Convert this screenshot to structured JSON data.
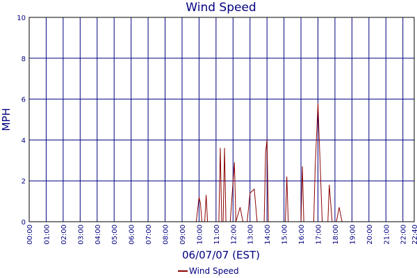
{
  "chart_data": {
    "type": "line",
    "title": "Wind Speed",
    "xlabel": "06/07/07 (EST)",
    "ylabel": "MPH",
    "ylim": [
      0,
      10
    ],
    "yticks": [
      "0",
      "2",
      "4",
      "6",
      "8",
      "10"
    ],
    "xticks": [
      "00:00",
      "01:00",
      "02:00",
      "03:00",
      "04:00",
      "05:00",
      "06:00",
      "07:00",
      "08:00",
      "09:00",
      "10:00",
      "11:00",
      "12:00",
      "13:00",
      "14:00",
      "15:00",
      "16:00",
      "17:00",
      "18:00",
      "19:00",
      "20:00",
      "21:00",
      "22:00",
      "22:40"
    ],
    "grid": true,
    "legend_position": "bottom-center",
    "series": [
      {
        "name": "Wind Speed",
        "color": "#8b0000",
        "x": [
          "00:00",
          "09:50",
          "10:00",
          "10:05",
          "10:10",
          "10:20",
          "10:25",
          "10:30",
          "11:00",
          "11:10",
          "11:15",
          "11:20",
          "11:25",
          "11:30",
          "11:35",
          "11:40",
          "11:50",
          "12:05",
          "12:10",
          "12:25",
          "12:35",
          "12:45",
          "12:50",
          "13:00",
          "13:15",
          "13:25",
          "13:35",
          "13:50",
          "13:55",
          "14:00",
          "14:05",
          "14:20",
          "15:05",
          "15:10",
          "15:15",
          "15:20",
          "15:45",
          "16:00",
          "16:05",
          "16:10",
          "16:20",
          "16:30",
          "16:45",
          "16:50",
          "17:00",
          "17:15",
          "17:25",
          "17:35",
          "17:40",
          "17:50",
          "18:05",
          "18:15",
          "18:25",
          "18:35",
          "22:40"
        ],
        "y": [
          0,
          0,
          1.2,
          0.9,
          0,
          0,
          1.3,
          0,
          0,
          0,
          3.6,
          0,
          0,
          3.6,
          0,
          0,
          0,
          2.9,
          0,
          0.7,
          0,
          0,
          0,
          1.4,
          1.6,
          0,
          0,
          0,
          3.4,
          4.0,
          0,
          0,
          0,
          2.2,
          0,
          0,
          0,
          0,
          2.7,
          0,
          0,
          0,
          0,
          2.6,
          5.8,
          0,
          0,
          0,
          1.8,
          0,
          0,
          0.7,
          0,
          0,
          0
        ]
      }
    ]
  }
}
